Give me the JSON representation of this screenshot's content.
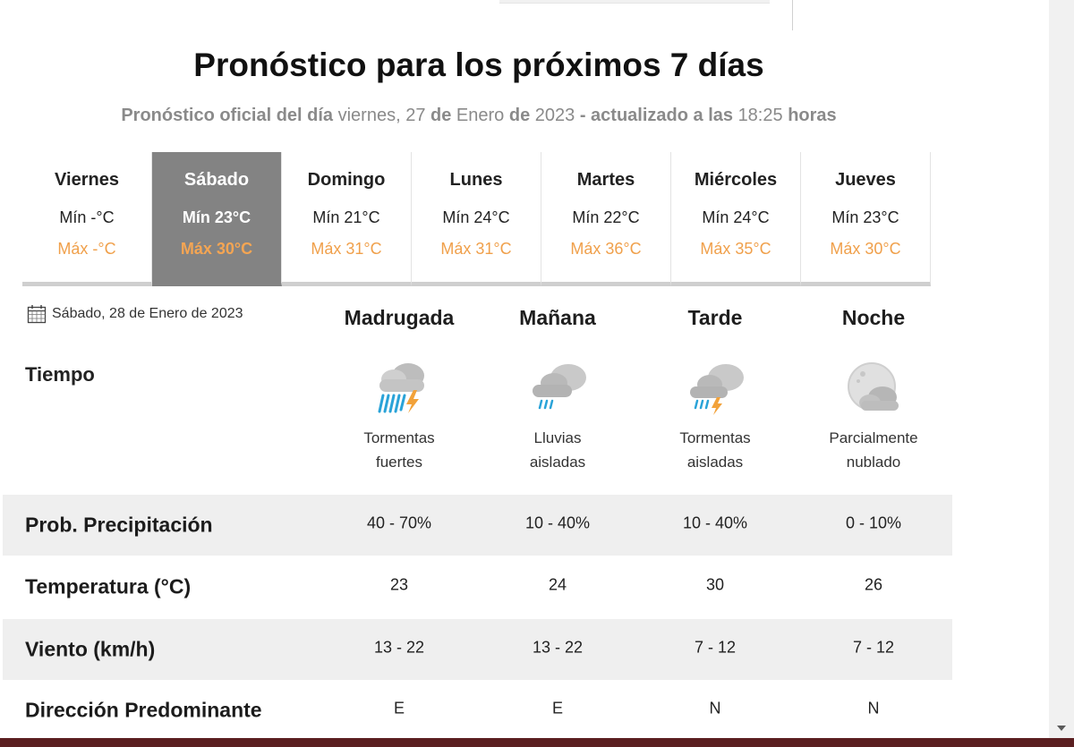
{
  "page": {
    "title": "Pronóstico para los próximos 7 días",
    "subtitle": {
      "p1": "Pronóstico oficial del día",
      "p2": "viernes, 27",
      "p3": "de",
      "p4": "Enero",
      "p5": "de",
      "p6": "2023",
      "p7": "- actualizado a las",
      "p8": "18:25",
      "p9": "horas"
    }
  },
  "days": [
    {
      "name": "Viernes",
      "min": "Mín -°C",
      "max": "Máx -°C"
    },
    {
      "name": "Sábado",
      "min": "Mín 23°C",
      "max": "Máx 30°C",
      "selected": true
    },
    {
      "name": "Domingo",
      "min": "Mín 21°C",
      "max": "Máx 31°C"
    },
    {
      "name": "Lunes",
      "min": "Mín 24°C",
      "max": "Máx 31°C"
    },
    {
      "name": "Martes",
      "min": "Mín 22°C",
      "max": "Máx 36°C"
    },
    {
      "name": "Miércoles",
      "min": "Mín 24°C",
      "max": "Máx 35°C"
    },
    {
      "name": "Jueves",
      "min": "Mín 23°C",
      "max": "Máx 30°C"
    }
  ],
  "detail": {
    "date": "Sábado, 28 de Enero de 2023",
    "periods": [
      "Madrugada",
      "Mañana",
      "Tarde",
      "Noche"
    ],
    "weather_label": "Tiempo",
    "weather": [
      {
        "icon": "heavy-storm-icon",
        "line1": "Tormentas",
        "line2": "fuertes"
      },
      {
        "icon": "isolated-rain-icon",
        "line1": "Lluvias",
        "line2": "aisladas"
      },
      {
        "icon": "isolated-storm-icon",
        "line1": "Tormentas",
        "line2": "aisladas"
      },
      {
        "icon": "partly-cloudy-night-icon",
        "line1": "Parcialmente",
        "line2": "nublado"
      }
    ],
    "rows": [
      {
        "label": "Prob. Precipitación",
        "values": [
          "40 - 70%",
          "10 - 40%",
          "10 - 40%",
          "0 - 10%"
        ]
      },
      {
        "label": "Temperatura (°C)",
        "values": [
          "23",
          "24",
          "30",
          "26"
        ]
      },
      {
        "label": "Viento (km/h)",
        "values": [
          "13 - 22",
          "13 - 22",
          "7 - 12",
          "7 - 12"
        ]
      },
      {
        "label": "Dirección Predominante",
        "values": [
          "E",
          "E",
          "N",
          "N"
        ]
      }
    ]
  },
  "colors": {
    "selected_tab": "#838383",
    "max_temp": "#f0a04b",
    "row_shade": "#efefef",
    "bottom_bar": "#5b1f21"
  }
}
